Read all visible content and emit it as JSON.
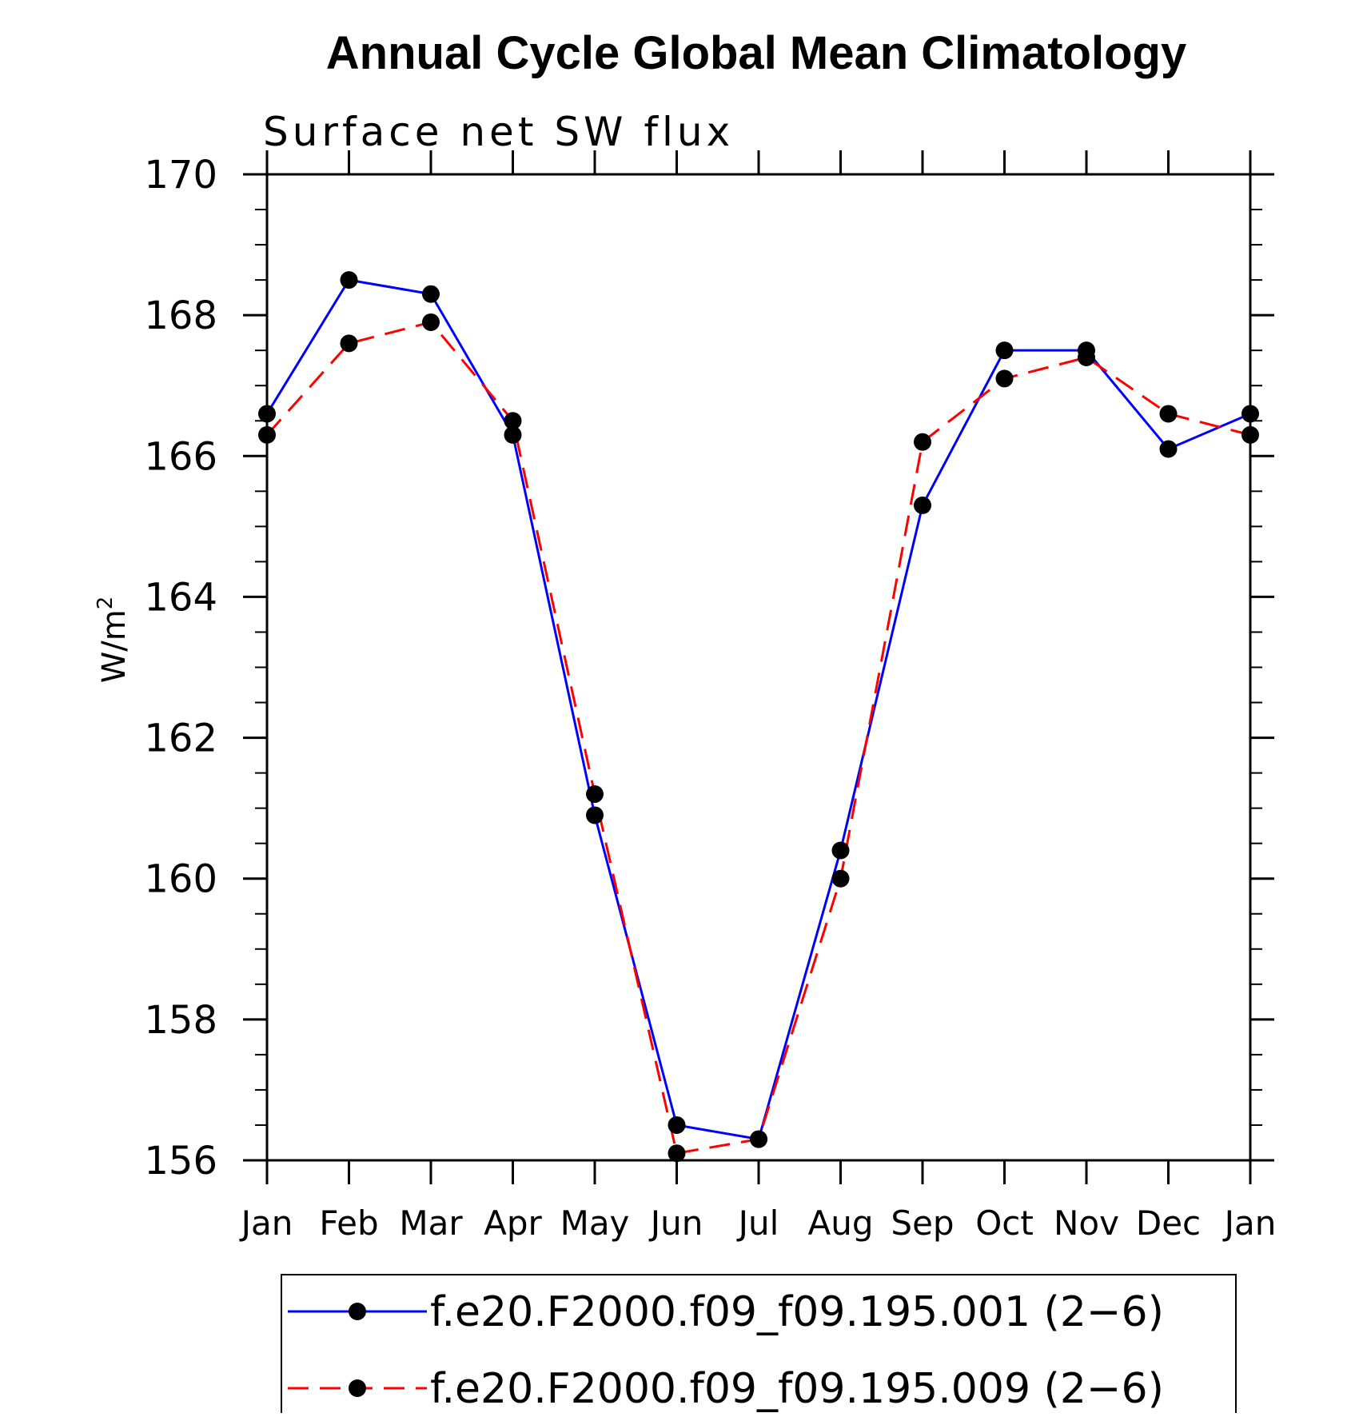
{
  "chart_data": {
    "type": "line",
    "title": "Annual Cycle Global Mean Climatology",
    "subtitle": "Surface net SW flux",
    "ylabel_base": "W/m",
    "ylabel_sup": "2",
    "categories": [
      "Jan",
      "Feb",
      "Mar",
      "Apr",
      "May",
      "Jun",
      "Jul",
      "Aug",
      "Sep",
      "Oct",
      "Nov",
      "Dec",
      "Jan"
    ],
    "ylim": [
      156,
      170
    ],
    "yticks": [
      156,
      158,
      160,
      162,
      164,
      166,
      168,
      170
    ],
    "yticks_labels": [
      "156",
      "158",
      "160",
      "162",
      "164",
      "166",
      "168",
      "170"
    ],
    "grid": false,
    "legend_position": "bottom",
    "series": [
      {
        "name": "f.e20.F2000.f09_f09.195.001 (2−6)",
        "color": "#0000ff",
        "dash": "solid",
        "marker": "filled-circle",
        "values": [
          166.6,
          168.5,
          168.3,
          166.3,
          160.9,
          156.5,
          156.3,
          160.4,
          165.3,
          167.5,
          167.5,
          166.1,
          166.6
        ]
      },
      {
        "name": "f.e20.F2000.f09_f09.195.009 (2−6)",
        "color": "#ff0000",
        "dash": "dashed",
        "marker": "filled-circle",
        "values": [
          166.3,
          167.6,
          167.9,
          166.5,
          161.2,
          156.1,
          156.3,
          160.0,
          166.2,
          167.1,
          167.4,
          166.6,
          166.3
        ]
      }
    ]
  }
}
